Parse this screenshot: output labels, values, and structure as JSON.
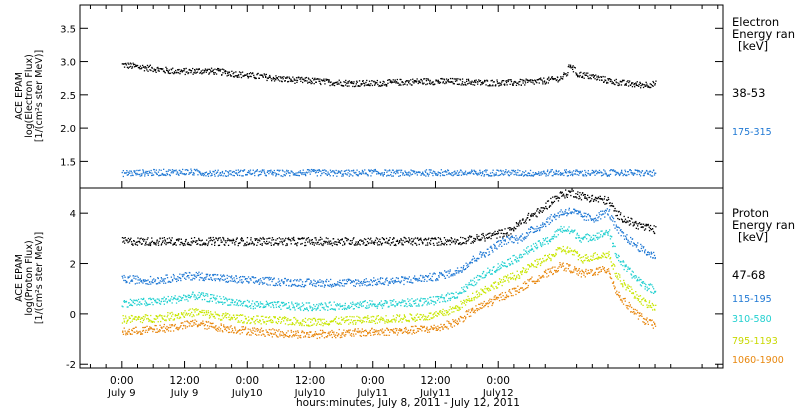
{
  "chart_data": [
    {
      "type": "scatter",
      "ylabel_lines": [
        "ACE EPAM",
        "log(Electron Flux)",
        "[1/(cm²s ster MeV)]"
      ],
      "ylim": [
        1.1,
        3.85
      ],
      "yticks": [
        "1.5",
        "2.0",
        "2.5",
        "3.0",
        "3.5"
      ],
      "ytick_values": [
        1.5,
        2.0,
        2.5,
        3.0,
        3.5
      ],
      "legend_title_lines": [
        "Electron",
        "Energy ran",
        "[keV]"
      ],
      "series": [
        {
          "name": "38-53",
          "color": "#000000",
          "points": [
            [
              0,
              2.96
            ],
            [
              3,
              2.93
            ],
            [
              6,
              2.9
            ],
            [
              9,
              2.87
            ],
            [
              12,
              2.86
            ],
            [
              15,
              2.87
            ],
            [
              18,
              2.86
            ],
            [
              21,
              2.83
            ],
            [
              24,
              2.8
            ],
            [
              27,
              2.78
            ],
            [
              30,
              2.75
            ],
            [
              33,
              2.73
            ],
            [
              36,
              2.72
            ],
            [
              39,
              2.7
            ],
            [
              42,
              2.69
            ],
            [
              45,
              2.68
            ],
            [
              48,
              2.68
            ],
            [
              51,
              2.69
            ],
            [
              54,
              2.7
            ],
            [
              57,
              2.71
            ],
            [
              60,
              2.71
            ],
            [
              63,
              2.71
            ],
            [
              66,
              2.7
            ],
            [
              69,
              2.69
            ],
            [
              72,
              2.69
            ],
            [
              75,
              2.69
            ],
            [
              78,
              2.7
            ],
            [
              81,
              2.72
            ],
            [
              84,
              2.76
            ],
            [
              85,
              2.82
            ],
            [
              85.7,
              2.97
            ],
            [
              86.3,
              2.9
            ],
            [
              87,
              2.82
            ],
            [
              90,
              2.78
            ],
            [
              93,
              2.72
            ],
            [
              96,
              2.68
            ],
            [
              99,
              2.66
            ],
            [
              102,
              2.67
            ]
          ]
        },
        {
          "name": "175-315",
          "color": "#1f78d4",
          "points": [
            [
              0,
              1.33
            ],
            [
              6,
              1.34
            ],
            [
              12,
              1.35
            ],
            [
              18,
              1.33
            ],
            [
              24,
              1.34
            ],
            [
              30,
              1.33
            ],
            [
              36,
              1.34
            ],
            [
              42,
              1.33
            ],
            [
              48,
              1.34
            ],
            [
              54,
              1.33
            ],
            [
              60,
              1.34
            ],
            [
              66,
              1.33
            ],
            [
              72,
              1.34
            ],
            [
              78,
              1.33
            ],
            [
              84,
              1.34
            ],
            [
              90,
              1.33
            ],
            [
              96,
              1.34
            ],
            [
              102,
              1.33
            ]
          ]
        }
      ]
    },
    {
      "type": "scatter",
      "ylabel_lines": [
        "ACE EPAM",
        "log(Proton Flux)",
        "[1/(cm²s ster MeV)]"
      ],
      "ylim": [
        -2.15,
        5.0
      ],
      "yticks": [
        "-2",
        "0",
        "2",
        "4"
      ],
      "ytick_values": [
        -2,
        0,
        2,
        4
      ],
      "legend_title_lines": [
        "Proton",
        "Energy ran",
        "[keV]"
      ],
      "series": [
        {
          "name": "47-68",
          "color": "#000000",
          "points": [
            [
              0,
              2.9
            ],
            [
              6,
              2.9
            ],
            [
              12,
              2.9
            ],
            [
              18,
              2.9
            ],
            [
              24,
              2.9
            ],
            [
              30,
              2.9
            ],
            [
              36,
              2.9
            ],
            [
              42,
              2.9
            ],
            [
              48,
              2.9
            ],
            [
              54,
              2.9
            ],
            [
              60,
              2.9
            ],
            [
              66,
              2.95
            ],
            [
              70,
              3.1
            ],
            [
              74,
              3.3
            ],
            [
              76,
              3.6
            ],
            [
              78,
              3.9
            ],
            [
              80,
              4.1
            ],
            [
              82,
              4.5
            ],
            [
              84,
              4.75
            ],
            [
              86,
              4.85
            ],
            [
              88,
              4.7
            ],
            [
              90,
              4.6
            ],
            [
              92,
              4.55
            ],
            [
              93,
              4.5
            ],
            [
              94.5,
              4.0
            ],
            [
              96,
              3.8
            ],
            [
              98,
              3.6
            ],
            [
              100,
              3.45
            ],
            [
              102,
              3.35
            ]
          ]
        },
        {
          "name": "115-195",
          "color": "#1f78d4",
          "points": [
            [
              0,
              1.4
            ],
            [
              6,
              1.35
            ],
            [
              10,
              1.45
            ],
            [
              14,
              1.55
            ],
            [
              18,
              1.45
            ],
            [
              24,
              1.35
            ],
            [
              30,
              1.3
            ],
            [
              36,
              1.25
            ],
            [
              42,
              1.25
            ],
            [
              48,
              1.3
            ],
            [
              54,
              1.35
            ],
            [
              60,
              1.5
            ],
            [
              64,
              1.7
            ],
            [
              66,
              2.0
            ],
            [
              68,
              2.3
            ],
            [
              70,
              2.5
            ],
            [
              72,
              2.8
            ],
            [
              74,
              3.0
            ],
            [
              76,
              3.0
            ],
            [
              78,
              3.3
            ],
            [
              80,
              3.5
            ],
            [
              82,
              3.8
            ],
            [
              84,
              4.05
            ],
            [
              86,
              4.1
            ],
            [
              88,
              3.9
            ],
            [
              90,
              3.8
            ],
            [
              92,
              4.0
            ],
            [
              93,
              4.1
            ],
            [
              94.5,
              3.4
            ],
            [
              96,
              3.1
            ],
            [
              98,
              2.8
            ],
            [
              100,
              2.5
            ],
            [
              102,
              2.3
            ]
          ]
        },
        {
          "name": "310-580",
          "color": "#22d0d0",
          "points": [
            [
              0,
              0.45
            ],
            [
              6,
              0.5
            ],
            [
              10,
              0.6
            ],
            [
              14,
              0.75
            ],
            [
              18,
              0.6
            ],
            [
              24,
              0.4
            ],
            [
              30,
              0.35
            ],
            [
              36,
              0.3
            ],
            [
              42,
              0.35
            ],
            [
              48,
              0.4
            ],
            [
              54,
              0.45
            ],
            [
              60,
              0.55
            ],
            [
              64,
              0.8
            ],
            [
              66,
              1.1
            ],
            [
              68,
              1.4
            ],
            [
              70,
              1.7
            ],
            [
              72,
              1.9
            ],
            [
              74,
              2.1
            ],
            [
              76,
              2.3
            ],
            [
              78,
              2.6
            ],
            [
              80,
              2.8
            ],
            [
              82,
              3.0
            ],
            [
              84,
              3.4
            ],
            [
              86,
              3.3
            ],
            [
              88,
              3.0
            ],
            [
              90,
              3.1
            ],
            [
              92,
              3.2
            ],
            [
              93,
              3.3
            ],
            [
              94.5,
              2.4
            ],
            [
              96,
              1.9
            ],
            [
              98,
              1.5
            ],
            [
              100,
              1.15
            ],
            [
              102,
              0.95
            ]
          ]
        },
        {
          "name": "795-1193",
          "color": "#c8e600",
          "points": [
            [
              0,
              -0.2
            ],
            [
              6,
              -0.15
            ],
            [
              10,
              -0.05
            ],
            [
              14,
              0.1
            ],
            [
              18,
              -0.05
            ],
            [
              24,
              -0.2
            ],
            [
              30,
              -0.25
            ],
            [
              36,
              -0.3
            ],
            [
              42,
              -0.25
            ],
            [
              48,
              -0.2
            ],
            [
              54,
              -0.15
            ],
            [
              60,
              -0.05
            ],
            [
              64,
              0.25
            ],
            [
              66,
              0.55
            ],
            [
              68,
              0.85
            ],
            [
              70,
              1.05
            ],
            [
              72,
              1.25
            ],
            [
              74,
              1.45
            ],
            [
              76,
              1.6
            ],
            [
              78,
              1.9
            ],
            [
              80,
              2.1
            ],
            [
              82,
              2.3
            ],
            [
              84,
              2.6
            ],
            [
              86,
              2.5
            ],
            [
              88,
              2.2
            ],
            [
              90,
              2.3
            ],
            [
              92,
              2.35
            ],
            [
              93,
              2.4
            ],
            [
              94.5,
              1.6
            ],
            [
              96,
              1.2
            ],
            [
              98,
              0.8
            ],
            [
              100,
              0.45
            ],
            [
              102,
              0.25
            ]
          ]
        },
        {
          "name": "1060-1900",
          "color": "#e8870e",
          "points": [
            [
              0,
              -0.7
            ],
            [
              6,
              -0.6
            ],
            [
              10,
              -0.5
            ],
            [
              14,
              -0.35
            ],
            [
              18,
              -0.5
            ],
            [
              24,
              -0.65
            ],
            [
              30,
              -0.75
            ],
            [
              36,
              -0.8
            ],
            [
              42,
              -0.75
            ],
            [
              48,
              -0.7
            ],
            [
              54,
              -0.65
            ],
            [
              60,
              -0.55
            ],
            [
              64,
              -0.3
            ],
            [
              66,
              0.0
            ],
            [
              68,
              0.25
            ],
            [
              70,
              0.45
            ],
            [
              72,
              0.65
            ],
            [
              74,
              0.85
            ],
            [
              76,
              1.0
            ],
            [
              78,
              1.3
            ],
            [
              80,
              1.5
            ],
            [
              82,
              1.7
            ],
            [
              84,
              1.95
            ],
            [
              86,
              1.8
            ],
            [
              88,
              1.6
            ],
            [
              90,
              1.7
            ],
            [
              92,
              1.75
            ],
            [
              93,
              1.8
            ],
            [
              94.5,
              0.9
            ],
            [
              96,
              0.5
            ],
            [
              98,
              0.1
            ],
            [
              100,
              -0.25
            ],
            [
              102,
              -0.45
            ]
          ]
        }
      ]
    }
  ],
  "xaxis": {
    "xlim": [
      -8,
      115
    ],
    "ticks": [
      {
        "x": 0,
        "time": "0:00",
        "day": "July 9"
      },
      {
        "x": 12,
        "time": "12:00",
        "day": "July 9"
      },
      {
        "x": 24,
        "time": "0:00",
        "day": "July10"
      },
      {
        "x": 36,
        "time": "12:00",
        "day": "July10"
      },
      {
        "x": 48,
        "time": "0:00",
        "day": "July11"
      },
      {
        "x": 60,
        "time": "12:00",
        "day": "July11"
      },
      {
        "x": 72,
        "time": "0:00",
        "day": "July12"
      }
    ],
    "xlabel": "hours:minutes, July  8, 2011 - July 12, 2011"
  }
}
